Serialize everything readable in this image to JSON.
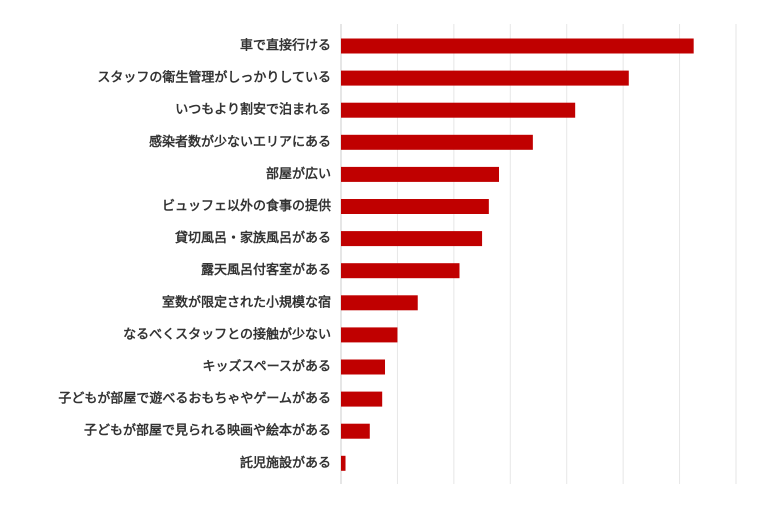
{
  "chart_data": {
    "type": "bar",
    "orientation": "horizontal",
    "categories": [
      "車で直接行ける",
      "スタッフの衛生管理がしっかりしている",
      "いつもより割安で泊まれる",
      "感染者数が少ないエリアにある",
      "部屋が広い",
      "ビュッフェ以外の食事の提供",
      "貸切風呂・家族風呂がある",
      "露天風呂付客室がある",
      "室数が限定された小規模な宿",
      "なるべくスタッフとの接触が少ない",
      "キッズスペースがある",
      "子どもが部屋で遊べるおもちゃやゲームがある",
      "子どもが部屋で見られる映画や絵本がある",
      "託児施設がある"
    ],
    "values": [
      62.5,
      51,
      41.5,
      34,
      28,
      26.2,
      25,
      21,
      13.6,
      10,
      7.8,
      7.3,
      5.1,
      0.8
    ],
    "xlim": [
      0,
      70
    ],
    "x_gridlines": [
      0,
      10,
      20,
      30,
      40,
      50,
      60,
      70
    ],
    "grid": true,
    "bar_color": "#c00000",
    "legend": "none",
    "title": "",
    "xlabel": "",
    "ylabel": ""
  }
}
